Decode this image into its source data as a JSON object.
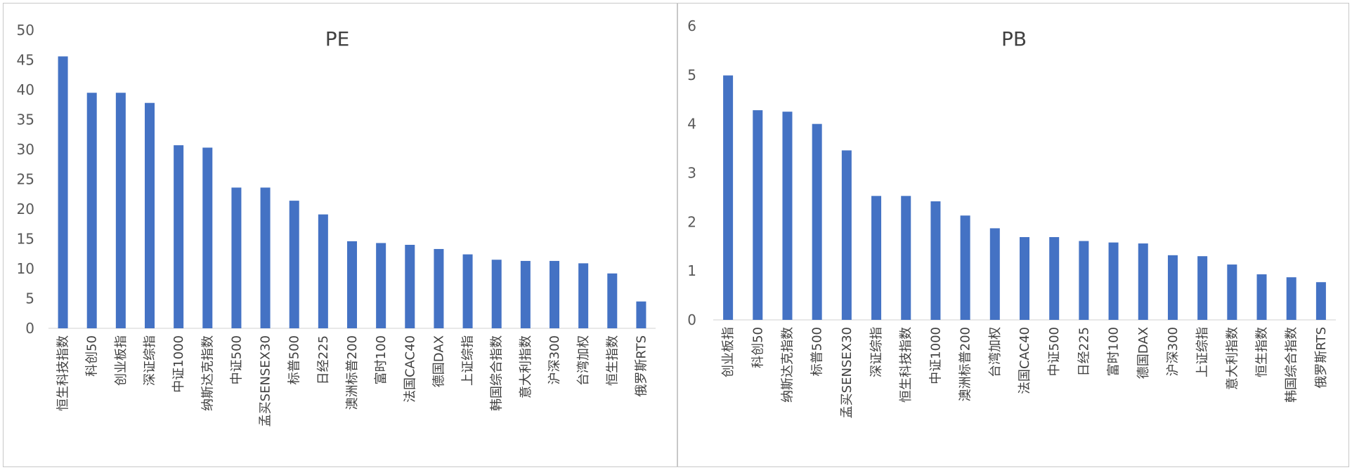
{
  "chart_data": [
    {
      "type": "bar",
      "title": "PE",
      "categories": [
        "恒生科技指数",
        "科创50",
        "创业板指",
        "深证综指",
        "中证1000",
        "纳斯达克指数",
        "中证500",
        "孟买SENSEX30",
        "标普500",
        "日经225",
        "澳洲标普200",
        "富时100",
        "法国CAC40",
        "德国DAX",
        "上证综指",
        "韩国综合指数",
        "意大利指数",
        "沪深300",
        "台湾加权",
        "恒生指数",
        "俄罗斯RTS"
      ],
      "values": [
        45.6,
        39.5,
        39.5,
        37.8,
        30.7,
        30.3,
        23.6,
        23.6,
        21.4,
        19.1,
        14.6,
        14.3,
        14.0,
        13.3,
        12.4,
        11.5,
        11.3,
        11.3,
        10.9,
        9.2,
        4.5
      ],
      "ylim": [
        0,
        50
      ],
      "yticks": [
        0,
        5,
        10,
        15,
        20,
        25,
        30,
        35,
        40,
        45,
        50
      ],
      "color": "#4472c4",
      "grid": false,
      "legend": "none"
    },
    {
      "type": "bar",
      "title": "PB",
      "categories": [
        "创业板指",
        "科创50",
        "纳斯达克指数",
        "标普500",
        "孟买SENSEX30",
        "深证综指",
        "恒生科技指数",
        "中证1000",
        "澳洲标普200",
        "台湾加权",
        "法国CAC40",
        "中证500",
        "日经225",
        "富时100",
        "德国DAX",
        "沪深300",
        "上证综指",
        "意大利指数",
        "恒生指数",
        "韩国综合指数",
        "俄罗斯RTS"
      ],
      "values": [
        4.99,
        4.28,
        4.25,
        4.0,
        3.46,
        2.53,
        2.53,
        2.42,
        2.13,
        1.87,
        1.69,
        1.69,
        1.61,
        1.58,
        1.56,
        1.32,
        1.3,
        1.13,
        0.93,
        0.87,
        0.77
      ],
      "ylim": [
        0,
        6
      ],
      "yticks": [
        0,
        1,
        2,
        3,
        4,
        5,
        6
      ],
      "color": "#4472c4",
      "grid": false,
      "legend": "none"
    }
  ]
}
